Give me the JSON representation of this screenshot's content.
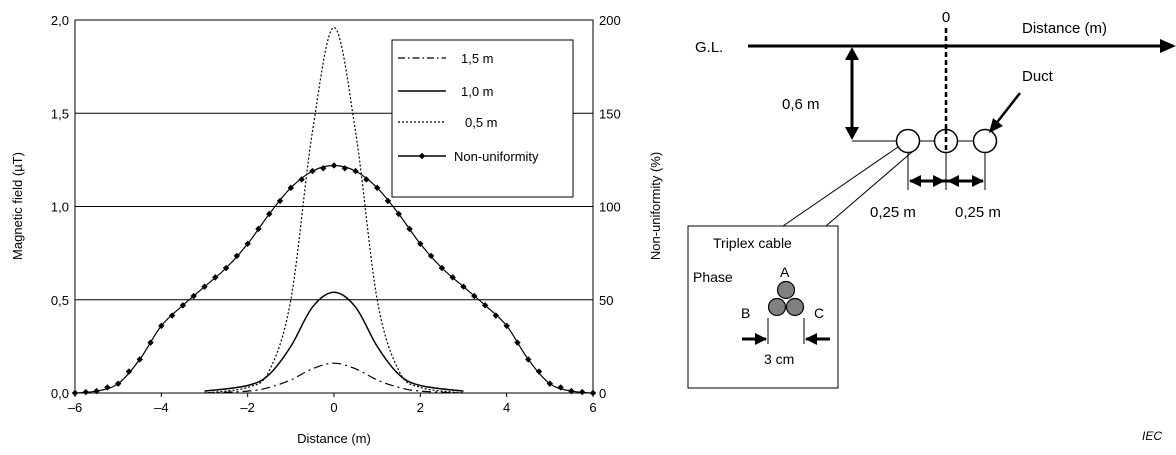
{
  "chart_data": {
    "type": "line",
    "xlabel": "Distance (m)",
    "ylabel": "Magnetic field  (µT)",
    "y2label": "Non-uniformity  (%)",
    "xlim": [
      -6,
      6
    ],
    "ylim": [
      0,
      2.0
    ],
    "y2lim": [
      0,
      200
    ],
    "xticks": [
      -6,
      -4,
      -2,
      0,
      2,
      4,
      6
    ],
    "xtick_labels": [
      "–6",
      "–4",
      "–2",
      "0",
      "2",
      "4",
      "6"
    ],
    "yticks": [
      0,
      0.5,
      1.0,
      1.5,
      2.0
    ],
    "ytick_labels": [
      "0,0",
      "0,5",
      "1,0",
      "1,5",
      "2,0"
    ],
    "y2ticks": [
      0,
      50,
      100,
      150,
      200
    ],
    "y2tick_labels": [
      "0",
      "50",
      "100",
      "150",
      "200"
    ],
    "grid": "horizontal",
    "legend_position": "top-right",
    "series": [
      {
        "name": "1,5 m",
        "style": "dashdot",
        "axis": "left",
        "color": "#000000",
        "x": [
          -3,
          -2,
          -1.5,
          -1,
          -0.5,
          0,
          0.5,
          1,
          1.5,
          2,
          3
        ],
        "y": [
          0.0,
          0.01,
          0.03,
          0.07,
          0.13,
          0.16,
          0.13,
          0.07,
          0.03,
          0.01,
          0.0
        ]
      },
      {
        "name": "1,0 m",
        "style": "solid",
        "axis": "left",
        "color": "#000000",
        "x": [
          -3,
          -2,
          -1.5,
          -1,
          -0.5,
          0,
          0.5,
          1,
          1.5,
          2,
          3
        ],
        "y": [
          0.01,
          0.04,
          0.1,
          0.25,
          0.46,
          0.54,
          0.46,
          0.25,
          0.1,
          0.04,
          0.01
        ]
      },
      {
        "name": "0,5 m",
        "style": "dotted",
        "axis": "left",
        "color": "#000000",
        "x": [
          -3,
          -2,
          -1.5,
          -1,
          -0.5,
          0,
          0.5,
          1,
          1.5,
          2,
          3
        ],
        "y": [
          0.0,
          0.03,
          0.12,
          0.5,
          1.4,
          1.96,
          1.4,
          0.5,
          0.12,
          0.03,
          0.0
        ]
      },
      {
        "name": "Non-uniformity",
        "style": "solid-diamond",
        "axis": "right",
        "color": "#000000",
        "x": [
          -6,
          -5.5,
          -5,
          -4.5,
          -4,
          -3.5,
          -3,
          -2.5,
          -2,
          -1.5,
          -1,
          -0.5,
          0,
          0.5,
          1,
          1.5,
          2,
          2.5,
          3,
          3.5,
          4,
          4.5,
          5,
          5.5,
          6
        ],
        "y": [
          0,
          1,
          5,
          18,
          36,
          47,
          57,
          67,
          80,
          96,
          110,
          119,
          122,
          119,
          110,
          96,
          80,
          67,
          57,
          47,
          36,
          18,
          5,
          1,
          0
        ]
      }
    ]
  },
  "diagram": {
    "ground_label": "G.L.",
    "origin_label": "0",
    "distance_label": "Distance (m)",
    "depth_label": "0,6 m",
    "duct_label": "Duct",
    "spacing_left_label": "0,25 m",
    "spacing_right_label": "0,25 m",
    "callout_title": "Triplex cable",
    "phase_label": "Phase",
    "phase_a": "A",
    "phase_b": "B",
    "phase_c": "C",
    "cable_width_label": "3 cm",
    "cable_fill": "#808080"
  },
  "credit": "IEC"
}
